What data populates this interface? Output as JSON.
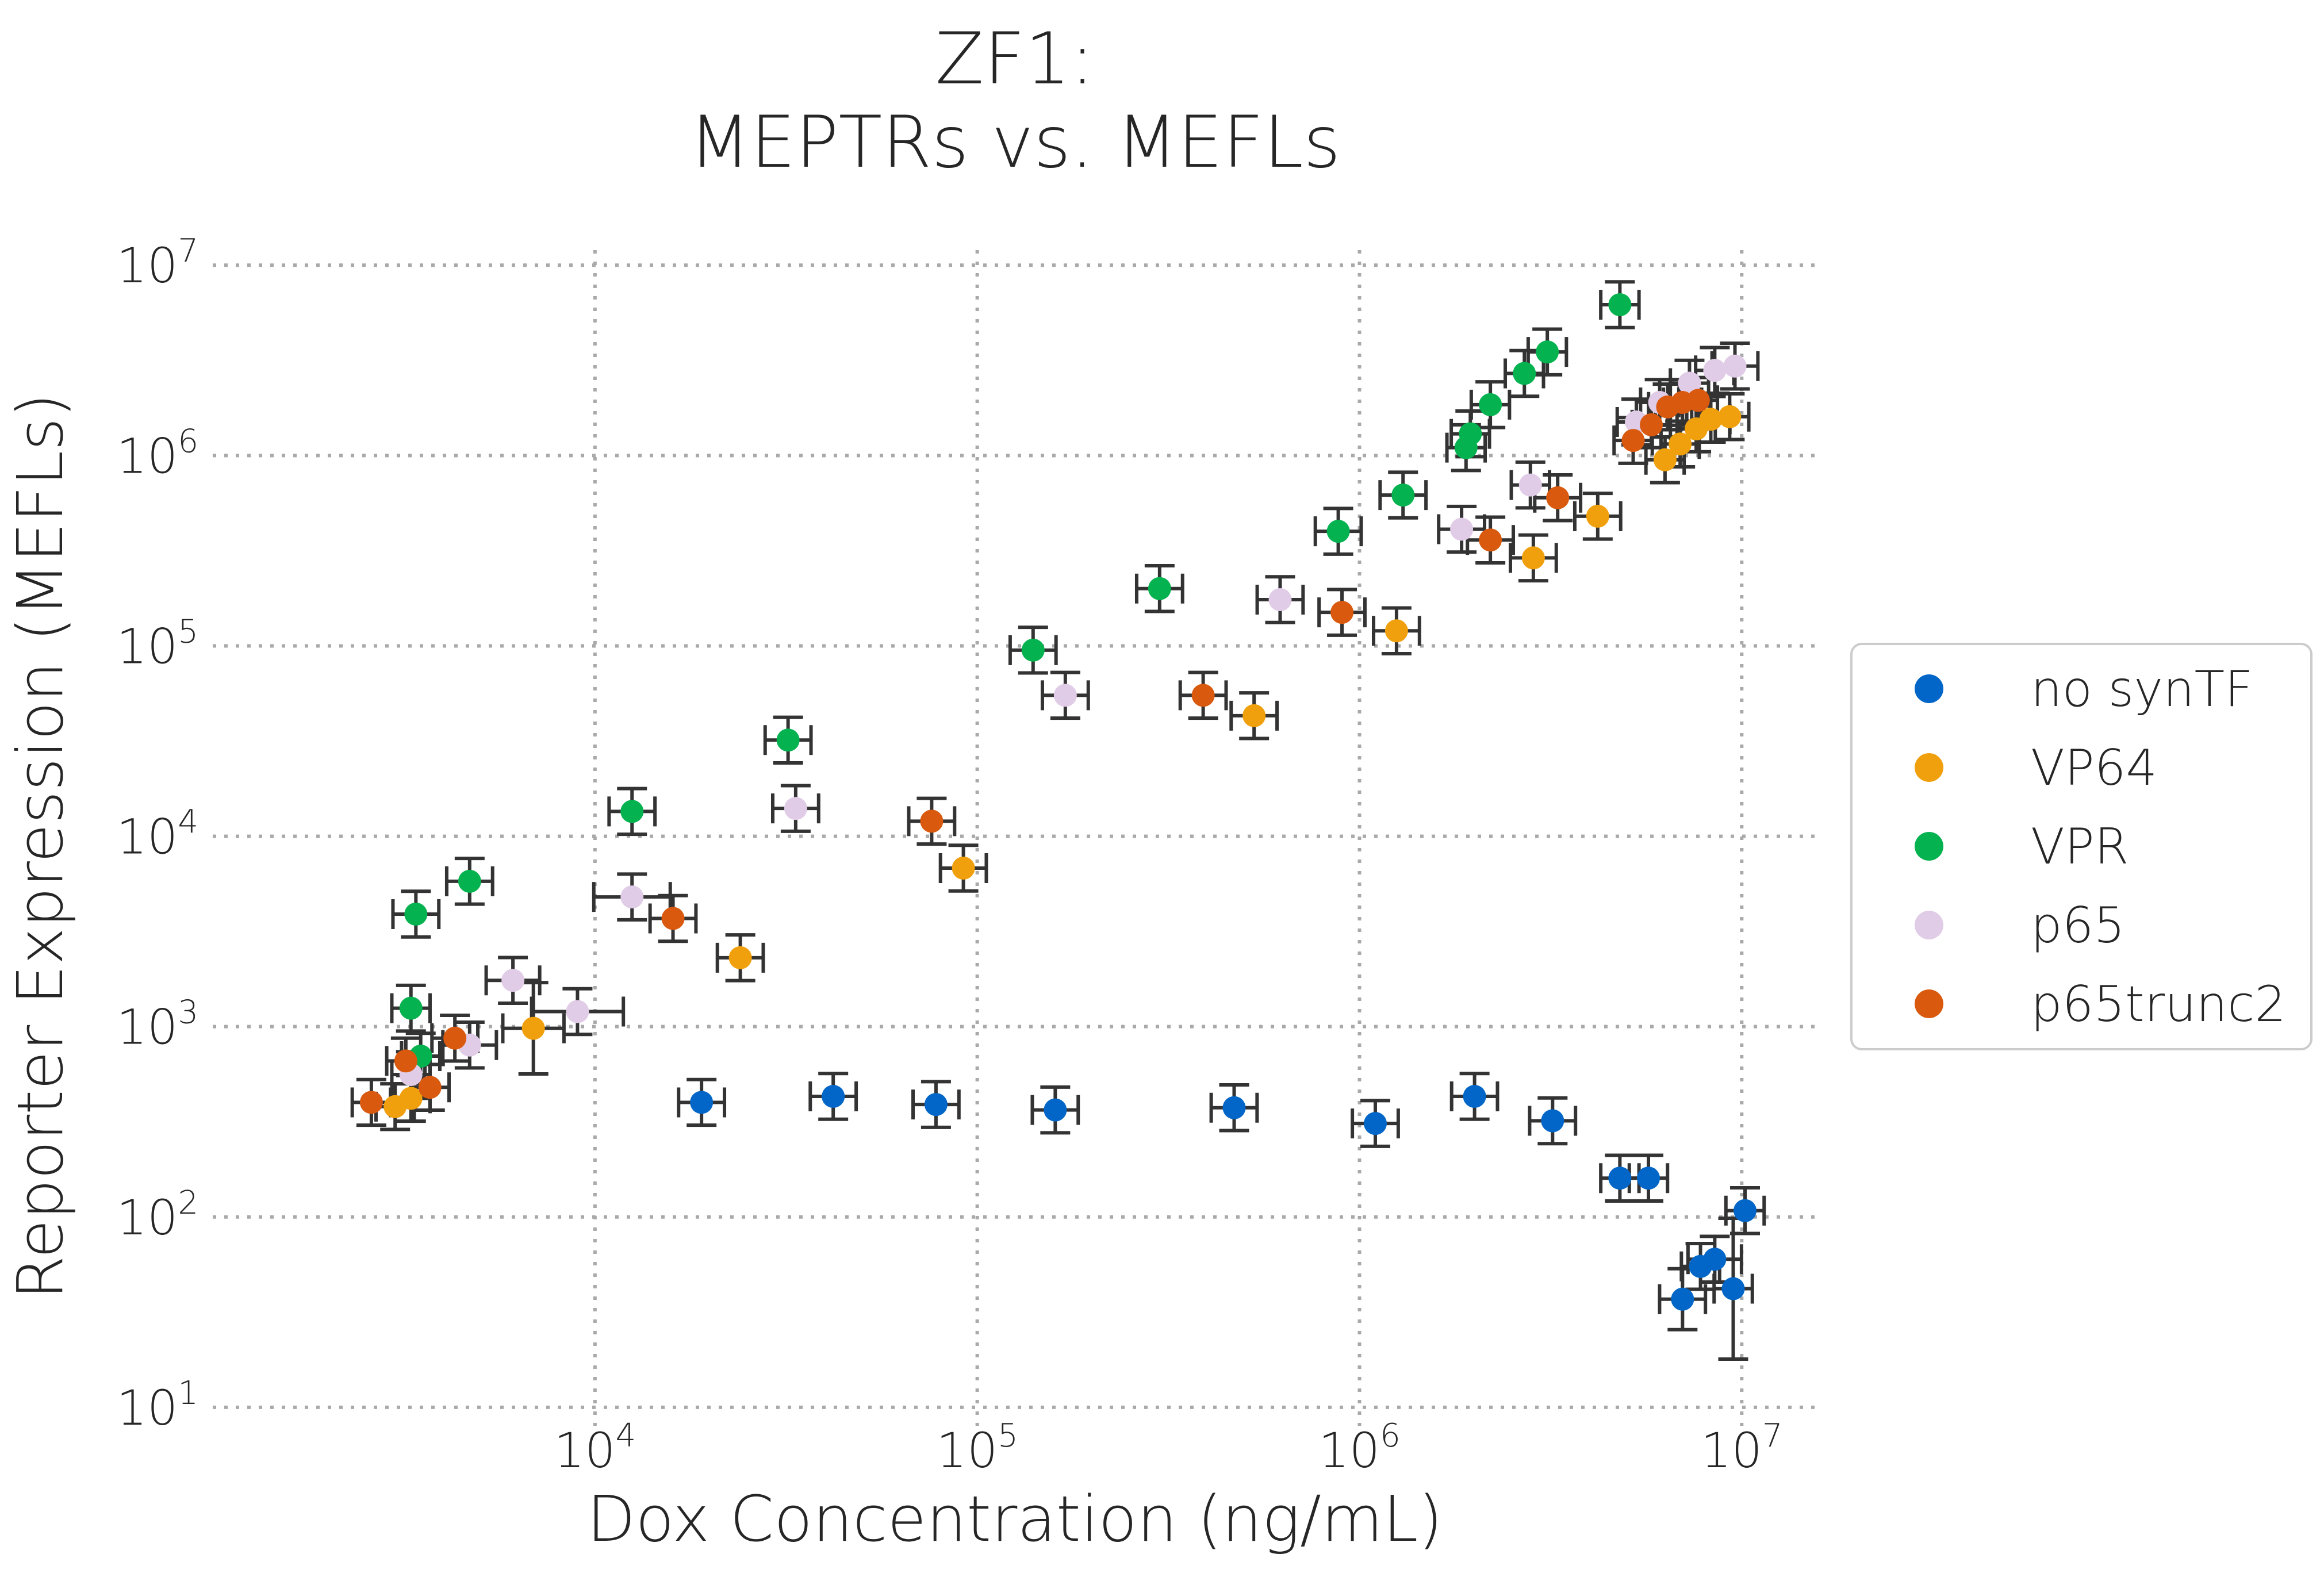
{
  "chart_data": {
    "type": "scatter",
    "title": "ZF1:\nMEPTRs vs. MEFLs",
    "xlabel": "Dox Concentration (ng/mL)",
    "ylabel": "Reporter Expression (MEFLs)",
    "xscale": "log",
    "yscale": "log",
    "xlim": [
      1000,
      16000000
    ],
    "ylim": [
      8,
      12000000
    ],
    "xticks": [
      10000,
      100000,
      1000000,
      10000000
    ],
    "xtick_labels": [
      {
        "base": "10",
        "exp": "4"
      },
      {
        "base": "10",
        "exp": "5"
      },
      {
        "base": "10",
        "exp": "6"
      },
      {
        "base": "10",
        "exp": "7"
      }
    ],
    "yticks": [
      10,
      100,
      1000,
      10000,
      100000,
      1000000,
      10000000
    ],
    "ytick_labels": [
      {
        "base": "10",
        "exp": "1"
      },
      {
        "base": "10",
        "exp": "2"
      },
      {
        "base": "10",
        "exp": "3"
      },
      {
        "base": "10",
        "exp": "4"
      },
      {
        "base": "10",
        "exp": "5"
      },
      {
        "base": "10",
        "exp": "6"
      },
      {
        "base": "10",
        "exp": "7"
      }
    ],
    "grid": true,
    "error_bars": true,
    "legend_position": "right",
    "series": [
      {
        "name": "no synTF",
        "color": "#0166c7",
        "points": [
          {
            "x": 19000,
            "y": 400,
            "xerr": 0.06,
            "yerr": 0.12
          },
          {
            "x": 42000,
            "y": 430,
            "xerr": 0.06,
            "yerr": 0.12
          },
          {
            "x": 78000,
            "y": 390,
            "xerr": 0.06,
            "yerr": 0.12
          },
          {
            "x": 160000,
            "y": 365,
            "xerr": 0.06,
            "yerr": 0.12
          },
          {
            "x": 470000,
            "y": 375,
            "xerr": 0.06,
            "yerr": 0.12
          },
          {
            "x": 1100000,
            "y": 310,
            "xerr": 0.06,
            "yerr": 0.12
          },
          {
            "x": 2000000,
            "y": 430,
            "xerr": 0.06,
            "yerr": 0.12
          },
          {
            "x": 3200000,
            "y": 320,
            "xerr": 0.06,
            "yerr": 0.12
          },
          {
            "x": 4800000,
            "y": 160,
            "xerr": 0.05,
            "yerr": 0.12
          },
          {
            "x": 5700000,
            "y": 160,
            "xerr": 0.05,
            "yerr": 0.12
          },
          {
            "x": 10200000,
            "y": 108,
            "xerr": 0.05,
            "yerr": 0.12
          },
          {
            "x": 7800000,
            "y": 55,
            "xerr": 0.05,
            "yerr": 0.12
          },
          {
            "x": 8500000,
            "y": 60,
            "xerr": 0.07,
            "yerr": 0.12
          },
          {
            "x": 7000000,
            "y": 37,
            "xerr": 0.06,
            "yerr": 0.16
          },
          {
            "x": 9500000,
            "y": 42,
            "xerr": 0.05,
            "yerr": 0.37
          }
        ]
      },
      {
        "name": "VP64",
        "color": "#f1a00d",
        "points": [
          {
            "x": 3000,
            "y": 380,
            "xerr": 0.05,
            "yerr": 0.12
          },
          {
            "x": 3300,
            "y": 420,
            "xerr": 0.05,
            "yerr": 0.12
          },
          {
            "x": 6900,
            "y": 980,
            "xerr": 0.08,
            "yerr": 0.24
          },
          {
            "x": 24000,
            "y": 2300,
            "xerr": 0.06,
            "yerr": 0.12
          },
          {
            "x": 92000,
            "y": 6800,
            "xerr": 0.06,
            "yerr": 0.12
          },
          {
            "x": 530000,
            "y": 43000,
            "xerr": 0.06,
            "yerr": 0.12
          },
          {
            "x": 1250000,
            "y": 120000,
            "xerr": 0.06,
            "yerr": 0.12
          },
          {
            "x": 2850000,
            "y": 290000,
            "xerr": 0.06,
            "yerr": 0.12
          },
          {
            "x": 4200000,
            "y": 480000,
            "xerr": 0.06,
            "yerr": 0.12
          },
          {
            "x": 6300000,
            "y": 950000,
            "xerr": 0.05,
            "yerr": 0.12
          },
          {
            "x": 6900000,
            "y": 1150000,
            "xerr": 0.05,
            "yerr": 0.12
          },
          {
            "x": 7600000,
            "y": 1380000,
            "xerr": 0.05,
            "yerr": 0.12
          },
          {
            "x": 8300000,
            "y": 1550000,
            "xerr": 0.05,
            "yerr": 0.12
          },
          {
            "x": 9300000,
            "y": 1600000,
            "xerr": 0.05,
            "yerr": 0.12
          }
        ]
      },
      {
        "name": "VPR",
        "color": "#04b24f",
        "points": [
          {
            "x": 3300,
            "y": 1250,
            "xerr": 0.05,
            "yerr": 0.12
          },
          {
            "x": 3500,
            "y": 700,
            "xerr": 0.05,
            "yerr": 0.12
          },
          {
            "x": 3400,
            "y": 3900,
            "xerr": 0.06,
            "yerr": 0.12
          },
          {
            "x": 4700,
            "y": 5800,
            "xerr": 0.06,
            "yerr": 0.12
          },
          {
            "x": 12500,
            "y": 13500,
            "xerr": 0.06,
            "yerr": 0.12
          },
          {
            "x": 32000,
            "y": 32000,
            "xerr": 0.06,
            "yerr": 0.12
          },
          {
            "x": 140000,
            "y": 95000,
            "xerr": 0.06,
            "yerr": 0.12
          },
          {
            "x": 300000,
            "y": 200000,
            "xerr": 0.06,
            "yerr": 0.12
          },
          {
            "x": 880000,
            "y": 400000,
            "xerr": 0.06,
            "yerr": 0.12
          },
          {
            "x": 1300000,
            "y": 620000,
            "xerr": 0.06,
            "yerr": 0.12
          },
          {
            "x": 1900000,
            "y": 1100000,
            "xerr": 0.05,
            "yerr": 0.12
          },
          {
            "x": 1950000,
            "y": 1300000,
            "xerr": 0.05,
            "yerr": 0.12
          },
          {
            "x": 2200000,
            "y": 1850000,
            "xerr": 0.05,
            "yerr": 0.12
          },
          {
            "x": 2700000,
            "y": 2700000,
            "xerr": 0.05,
            "yerr": 0.12
          },
          {
            "x": 3100000,
            "y": 3500000,
            "xerr": 0.05,
            "yerr": 0.12
          },
          {
            "x": 4800000,
            "y": 6200000,
            "xerr": 0.05,
            "yerr": 0.12
          }
        ]
      },
      {
        "name": "p65",
        "color": "#e1cce7",
        "points": [
          {
            "x": 3300,
            "y": 560,
            "xerr": 0.05,
            "yerr": 0.12
          },
          {
            "x": 4700,
            "y": 800,
            "xerr": 0.07,
            "yerr": 0.12
          },
          {
            "x": 6100,
            "y": 1750,
            "xerr": 0.07,
            "yerr": 0.12
          },
          {
            "x": 9000,
            "y": 1200,
            "xerr": 0.12,
            "yerr": 0.12
          },
          {
            "x": 12500,
            "y": 4800,
            "xerr": 0.1,
            "yerr": 0.12
          },
          {
            "x": 33500,
            "y": 14000,
            "xerr": 0.06,
            "yerr": 0.12
          },
          {
            "x": 170000,
            "y": 55000,
            "xerr": 0.06,
            "yerr": 0.12
          },
          {
            "x": 620000,
            "y": 175000,
            "xerr": 0.06,
            "yerr": 0.12
          },
          {
            "x": 1850000,
            "y": 410000,
            "xerr": 0.06,
            "yerr": 0.12
          },
          {
            "x": 2800000,
            "y": 700000,
            "xerr": 0.05,
            "yerr": 0.12
          },
          {
            "x": 5300000,
            "y": 1500000,
            "xerr": 0.05,
            "yerr": 0.12
          },
          {
            "x": 6100000,
            "y": 1900000,
            "xerr": 0.05,
            "yerr": 0.12
          },
          {
            "x": 7300000,
            "y": 2400000,
            "xerr": 0.05,
            "yerr": 0.12
          },
          {
            "x": 8500000,
            "y": 2800000,
            "xerr": 0.05,
            "yerr": 0.12
          },
          {
            "x": 9600000,
            "y": 2950000,
            "xerr": 0.06,
            "yerr": 0.12
          }
        ]
      },
      {
        "name": "p65trunc2",
        "color": "#d95a0f",
        "points": [
          {
            "x": 2600,
            "y": 400,
            "xerr": 0.05,
            "yerr": 0.12
          },
          {
            "x": 3200,
            "y": 660,
            "xerr": 0.05,
            "yerr": 0.12
          },
          {
            "x": 3700,
            "y": 480,
            "xerr": 0.05,
            "yerr": 0.12
          },
          {
            "x": 4300,
            "y": 870,
            "xerr": 0.06,
            "yerr": 0.12
          },
          {
            "x": 16000,
            "y": 3700,
            "xerr": 0.06,
            "yerr": 0.12
          },
          {
            "x": 76000,
            "y": 12000,
            "xerr": 0.06,
            "yerr": 0.12
          },
          {
            "x": 390000,
            "y": 55000,
            "xerr": 0.06,
            "yerr": 0.12
          },
          {
            "x": 900000,
            "y": 150000,
            "xerr": 0.06,
            "yerr": 0.12
          },
          {
            "x": 2200000,
            "y": 360000,
            "xerr": 0.06,
            "yerr": 0.12
          },
          {
            "x": 3300000,
            "y": 600000,
            "xerr": 0.06,
            "yerr": 0.12
          },
          {
            "x": 5200000,
            "y": 1200000,
            "xerr": 0.05,
            "yerr": 0.12
          },
          {
            "x": 5800000,
            "y": 1450000,
            "xerr": 0.05,
            "yerr": 0.12
          },
          {
            "x": 6400000,
            "y": 1800000,
            "xerr": 0.05,
            "yerr": 0.12
          },
          {
            "x": 7000000,
            "y": 1900000,
            "xerr": 0.05,
            "yerr": 0.12
          },
          {
            "x": 7700000,
            "y": 1950000,
            "xerr": 0.05,
            "yerr": 0.12
          }
        ]
      }
    ]
  }
}
